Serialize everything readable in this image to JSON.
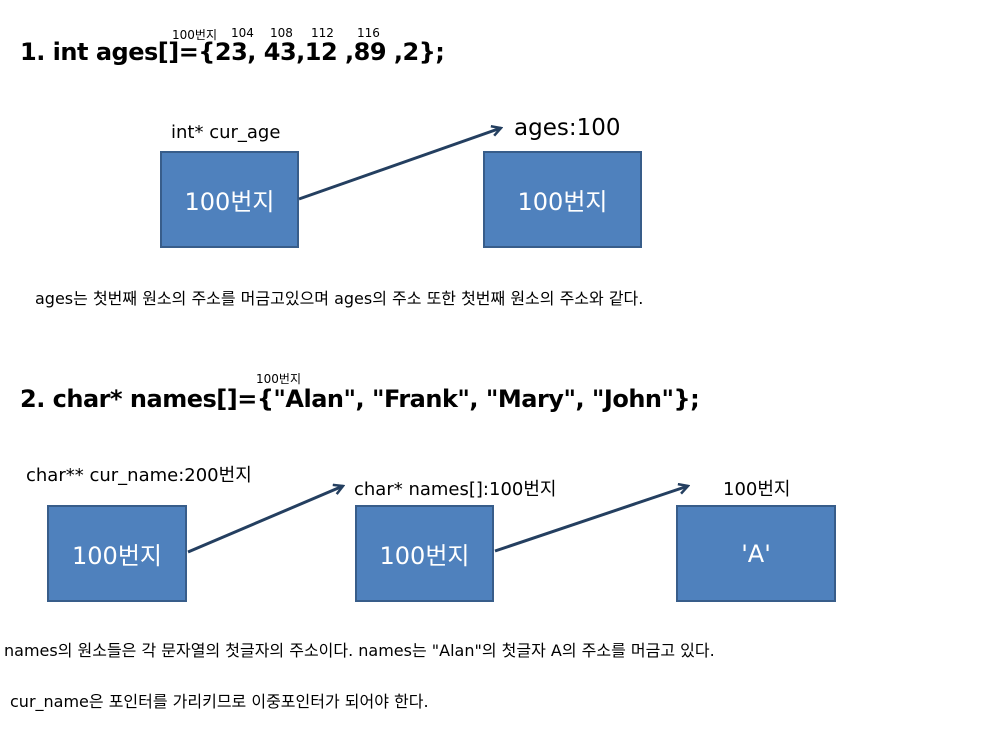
{
  "section1": {
    "heading": "1. int ages[]={23, 43,12 ,89 ,2};",
    "addresses": [
      "100번지",
      "104",
      "108",
      "112",
      "116"
    ],
    "pointer_label": "int* cur_age",
    "pointer_box": "100번지",
    "target_label": "ages:100",
    "target_box": "100번지",
    "note": "ages는 첫번째 원소의 주소를 머금고있으며 ages의 주소 또한 첫번째 원소의 주소와 같다."
  },
  "section2": {
    "heading": "2. char* names[]={\"Alan\", \"Frank\", \"Mary\", \"John\"};",
    "address": "100번지",
    "cur_name_label": "char** cur_name:200번지",
    "cur_name_box": "100번지",
    "names_label": "char* names[]:100번지",
    "names_box": "100번지",
    "char_label": "100번지",
    "char_box": "'A'",
    "note1": "names의 원소들은 각 문자열의 첫글자의 주소이다. names는 \"Alan\"의 첫글자 A의 주소를 머금고 있다.",
    "note2": "cur_name은 포인터를 가리키므로 이중포인터가 되어야 한다."
  },
  "colors": {
    "box_fill": "#4f81bd",
    "box_border": "#385d8a",
    "arrow": "#243f60"
  }
}
